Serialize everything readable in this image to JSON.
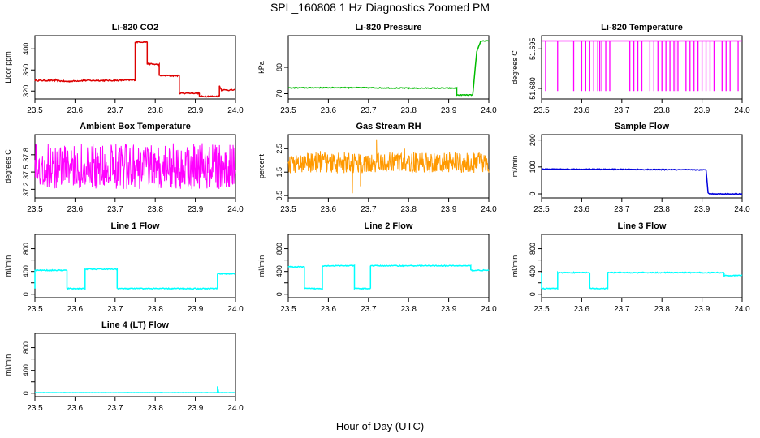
{
  "figure": {
    "title": "SPL_160808  1 Hz Diagnostics Zoomed PM",
    "xlabel": "Hour of Day (UTC)"
  },
  "chart_data": [
    {
      "type": "line",
      "title": "Li-820 CO2",
      "ylabel": "Licor ppm",
      "color": "#dd0000",
      "xlim": [
        23.5,
        24.0
      ],
      "ylim": [
        305,
        425
      ],
      "xticks": [
        "23.5",
        "23.6",
        "23.7",
        "23.8",
        "23.9",
        "24.0"
      ],
      "yticks": [
        320,
        360,
        400
      ],
      "segments": [
        [
          23.5,
          340
        ],
        [
          23.55,
          340
        ],
        [
          23.58,
          338
        ],
        [
          23.62,
          340
        ],
        [
          23.7,
          340
        ],
        [
          23.75,
          341
        ],
        [
          23.75,
          413
        ],
        [
          23.78,
          413
        ],
        [
          23.78,
          372
        ],
        [
          23.81,
          370
        ],
        [
          23.81,
          349
        ],
        [
          23.86,
          349
        ],
        [
          23.86,
          316
        ],
        [
          23.91,
          316
        ],
        [
          23.91,
          310
        ],
        [
          23.96,
          310
        ],
        [
          23.96,
          330
        ],
        [
          23.965,
          322
        ],
        [
          24.0,
          322
        ]
      ],
      "noise": 1.2
    },
    {
      "type": "line",
      "title": "Li-820 Pressure",
      "ylabel": "kPa",
      "color": "#00bb00",
      "xlim": [
        23.5,
        24.0
      ],
      "ylim": [
        68,
        92
      ],
      "xticks": [
        "23.5",
        "23.6",
        "23.7",
        "23.8",
        "23.9",
        "24.0"
      ],
      "yticks": [
        70,
        80
      ],
      "segments": [
        [
          23.5,
          72.2
        ],
        [
          23.65,
          72.3
        ],
        [
          23.8,
          72.1
        ],
        [
          23.92,
          72.1
        ],
        [
          23.92,
          69.5
        ],
        [
          23.96,
          69.5
        ],
        [
          23.97,
          86
        ],
        [
          23.98,
          90
        ],
        [
          24.0,
          90
        ]
      ],
      "noise": 0.15
    },
    {
      "type": "spikes",
      "title": "Li-820 Temperature",
      "ylabel": "degrees C",
      "color": "#ff00ff",
      "xlim": [
        23.5,
        24.0
      ],
      "ylim": [
        51.676,
        51.7
      ],
      "xticks": [
        "23.5",
        "23.6",
        "23.7",
        "23.8",
        "23.9",
        "24.0"
      ],
      "yticks": [
        51.68,
        51.695
      ],
      "ytick_labels": [
        "51.680",
        "51.695"
      ],
      "base": 51.698,
      "low": 51.679,
      "spike_x": [
        23.51,
        23.54,
        23.58,
        23.6,
        23.61,
        23.62,
        23.63,
        23.64,
        23.645,
        23.65,
        23.66,
        23.67,
        23.72,
        23.73,
        23.74,
        23.75,
        23.77,
        23.78,
        23.79,
        23.8,
        23.81,
        23.82,
        23.83,
        23.835,
        23.84,
        23.86,
        23.87,
        23.88,
        23.89,
        23.9,
        23.91,
        23.92,
        23.93,
        23.95,
        23.96,
        23.97,
        23.99
      ]
    },
    {
      "type": "noise",
      "title": "Ambient Box Temperature",
      "ylabel": "degrees C",
      "color": "#ff00ff",
      "xlim": [
        23.5,
        24.0
      ],
      "ylim": [
        37.05,
        38.15
      ],
      "xticks": [
        "23.5",
        "23.6",
        "23.7",
        "23.8",
        "23.9",
        "24.0"
      ],
      "yticks": [
        37.2,
        37.5,
        37.8
      ],
      "min": 37.2,
      "max": 38.0,
      "mid": 37.55
    },
    {
      "type": "noise",
      "title": "Gas Stream RH",
      "ylabel": "percent",
      "color": "#ff9900",
      "xlim": [
        23.5,
        24.0
      ],
      "ylim": [
        0.4,
        3.1
      ],
      "xticks": [
        "23.5",
        "23.6",
        "23.7",
        "23.8",
        "23.9",
        "24.0"
      ],
      "yticks": [
        0.5,
        1.5,
        2.5
      ],
      "min": 1.45,
      "max": 2.35,
      "mid": 1.9,
      "outliers": [
        [
          23.66,
          0.6
        ],
        [
          23.72,
          2.9
        ],
        [
          23.68,
          0.9
        ],
        [
          23.58,
          2.4
        ],
        [
          23.79,
          2.5
        ]
      ]
    },
    {
      "type": "line",
      "title": "Sample Flow",
      "ylabel": "ml/min",
      "color": "#0000dd",
      "xlim": [
        23.5,
        24.0
      ],
      "ylim": [
        -15,
        220
      ],
      "xticks": [
        "23.5",
        "23.6",
        "23.7",
        "23.8",
        "23.9",
        "24.0"
      ],
      "yticks": [
        0,
        100,
        200
      ],
      "segments": [
        [
          23.5,
          92
        ],
        [
          23.7,
          91
        ],
        [
          23.91,
          89
        ],
        [
          23.91,
          89
        ],
        [
          23.915,
          5
        ],
        [
          23.92,
          0
        ],
        [
          24.0,
          0
        ]
      ],
      "noise": 1.5
    },
    {
      "type": "line",
      "title": "Line 1 Flow",
      "ylabel": "ml/min",
      "color": "#00ffff",
      "xlim": [
        23.5,
        24.0
      ],
      "ylim": [
        -60,
        1050
      ],
      "xticks": [
        "23.5",
        "23.6",
        "23.7",
        "23.8",
        "23.9",
        "24.0"
      ],
      "yticks": [
        0,
        200,
        400,
        600,
        800
      ],
      "ytick_labels": [
        "0",
        "400",
        "800"
      ],
      "segments": [
        [
          23.5,
          100
        ],
        [
          23.5,
          420
        ],
        [
          23.58,
          420
        ],
        [
          23.58,
          100
        ],
        [
          23.625,
          100
        ],
        [
          23.625,
          440
        ],
        [
          23.705,
          440
        ],
        [
          23.705,
          100
        ],
        [
          23.955,
          100
        ],
        [
          23.955,
          360
        ],
        [
          24.0,
          360
        ]
      ],
      "noise": 8
    },
    {
      "type": "line",
      "title": "Line 2 Flow",
      "ylabel": "ml/min",
      "color": "#00ffff",
      "xlim": [
        23.5,
        24.0
      ],
      "ylim": [
        -60,
        1050
      ],
      "xticks": [
        "23.5",
        "23.6",
        "23.7",
        "23.8",
        "23.9",
        "24.0"
      ],
      "yticks": [
        0,
        200,
        400,
        600,
        800
      ],
      "ytick_labels": [
        "0",
        "400",
        "800"
      ],
      "segments": [
        [
          23.5,
          480
        ],
        [
          23.54,
          480
        ],
        [
          23.54,
          100
        ],
        [
          23.585,
          100
        ],
        [
          23.585,
          500
        ],
        [
          23.665,
          500
        ],
        [
          23.665,
          100
        ],
        [
          23.705,
          100
        ],
        [
          23.705,
          500
        ],
        [
          23.955,
          500
        ],
        [
          23.955,
          420
        ],
        [
          24.0,
          420
        ]
      ],
      "noise": 8
    },
    {
      "type": "line",
      "title": "Line 3 Flow",
      "ylabel": "ml/min",
      "color": "#00ffff",
      "xlim": [
        23.5,
        24.0
      ],
      "ylim": [
        -60,
        1050
      ],
      "xticks": [
        "23.5",
        "23.6",
        "23.7",
        "23.8",
        "23.9",
        "24.0"
      ],
      "yticks": [
        0,
        200,
        400,
        600,
        800
      ],
      "ytick_labels": [
        "0",
        "400",
        "800"
      ],
      "segments": [
        [
          23.5,
          380
        ],
        [
          23.5,
          100
        ],
        [
          23.54,
          100
        ],
        [
          23.54,
          380
        ],
        [
          23.62,
          380
        ],
        [
          23.62,
          100
        ],
        [
          23.665,
          100
        ],
        [
          23.665,
          380
        ],
        [
          23.955,
          380
        ],
        [
          23.955,
          330
        ],
        [
          24.0,
          330
        ]
      ],
      "noise": 8
    },
    {
      "type": "line",
      "title": "Line 4 (LT) Flow",
      "ylabel": "ml/min",
      "color": "#00ffff",
      "xlim": [
        23.5,
        24.0
      ],
      "ylim": [
        -60,
        1050
      ],
      "xticks": [
        "23.5",
        "23.6",
        "23.7",
        "23.8",
        "23.9",
        "24.0"
      ],
      "yticks": [
        0,
        200,
        400,
        600,
        800
      ],
      "ytick_labels": [
        "0",
        "400",
        "800"
      ],
      "segments": [
        [
          23.5,
          10
        ],
        [
          23.955,
          10
        ],
        [
          23.955,
          120
        ],
        [
          23.958,
          10
        ],
        [
          24.0,
          10
        ]
      ],
      "noise": 2
    }
  ]
}
